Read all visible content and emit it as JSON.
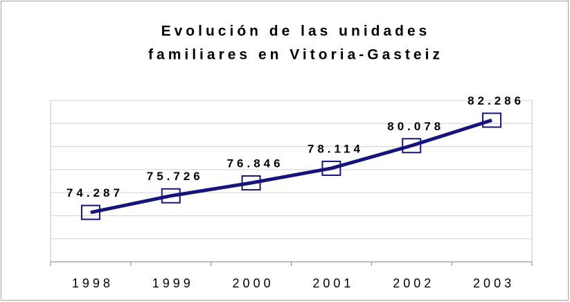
{
  "chart_data": {
    "type": "line",
    "title": [
      "Evolución de las unidades",
      "familiares en Vitoria-Gasteiz"
    ],
    "categories": [
      "1998",
      "1999",
      "2000",
      "2001",
      "2002",
      "2003"
    ],
    "values": [
      74287,
      75726,
      76846,
      78114,
      80078,
      82286
    ],
    "value_labels": [
      "74.287",
      "75.726",
      "76.846",
      "78.114",
      "80.078",
      "82.286"
    ],
    "color": "#14147a",
    "ylim": [
      70000,
      84000
    ],
    "yticks": [
      70000,
      72000,
      74000,
      76000,
      78000,
      80000,
      82000,
      84000
    ],
    "grid": true
  }
}
